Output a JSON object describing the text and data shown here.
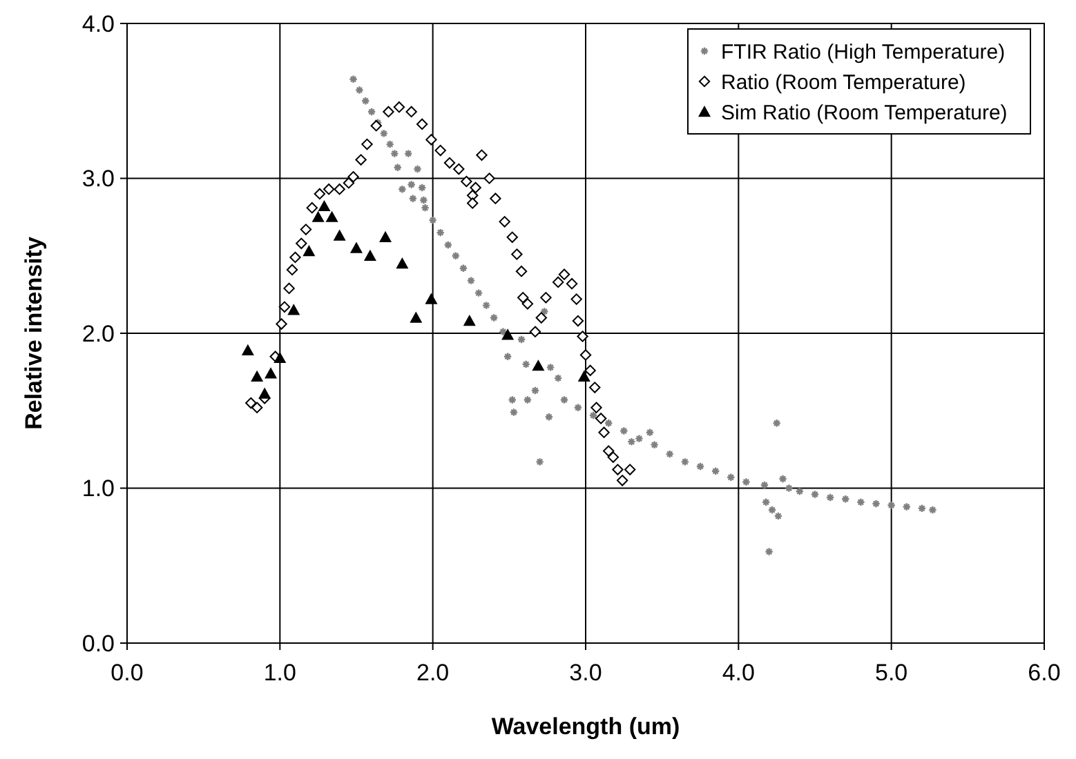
{
  "chart_data": {
    "type": "scatter",
    "xlabel": "Wavelength (um)",
    "ylabel": "Relative intensity",
    "xlim": [
      0,
      6
    ],
    "ylim": [
      0,
      4
    ],
    "xticks": [
      {
        "value": 0,
        "label": "0.0"
      },
      {
        "value": 1,
        "label": "1.0"
      },
      {
        "value": 2,
        "label": "2.0"
      },
      {
        "value": 3,
        "label": "3.0"
      },
      {
        "value": 4,
        "label": "4.0"
      },
      {
        "value": 5,
        "label": "5.0"
      },
      {
        "value": 6,
        "label": "6.0"
      }
    ],
    "yticks": [
      {
        "value": 0,
        "label": "0.0"
      },
      {
        "value": 1,
        "label": "1.0"
      },
      {
        "value": 2,
        "label": "2.0"
      },
      {
        "value": 3,
        "label": "3.0"
      },
      {
        "value": 4,
        "label": "4.0"
      }
    ],
    "grid": true,
    "legend": "top right",
    "series": [
      {
        "name": "FTIR Ratio (High Temperature)",
        "color": "#808080",
        "marker": "cross",
        "x": [
          1.48,
          1.52,
          1.56,
          1.6,
          1.64,
          1.68,
          1.72,
          1.75,
          1.77,
          1.84,
          1.9,
          1.8,
          1.86,
          1.93,
          1.87,
          1.94,
          1.95,
          2.0,
          2.05,
          2.1,
          2.15,
          2.2,
          2.25,
          2.3,
          2.35,
          2.4,
          2.46,
          2.58,
          2.49,
          2.61,
          2.73,
          2.77,
          2.82,
          2.67,
          2.52,
          2.53,
          2.62,
          2.76,
          2.7,
          2.86,
          2.95,
          3.05,
          3.15,
          3.25,
          3.35,
          3.3,
          3.42,
          3.45,
          3.55,
          3.65,
          3.75,
          3.85,
          3.95,
          4.05,
          4.17,
          4.25,
          4.18,
          4.22,
          4.26,
          4.2,
          4.29,
          4.33,
          4.4,
          4.5,
          4.6,
          4.7,
          4.8,
          4.9,
          5.0,
          5.1,
          5.2,
          5.27
        ],
        "values": [
          3.64,
          3.57,
          3.5,
          3.43,
          3.36,
          3.29,
          3.22,
          3.16,
          3.07,
          3.16,
          3.06,
          2.93,
          2.96,
          2.94,
          2.87,
          2.86,
          2.81,
          2.73,
          2.65,
          2.57,
          2.5,
          2.42,
          2.34,
          2.26,
          2.18,
          2.1,
          2.01,
          1.96,
          1.85,
          1.8,
          2.14,
          1.78,
          1.71,
          1.63,
          1.57,
          1.49,
          1.57,
          1.46,
          1.17,
          1.57,
          1.52,
          1.47,
          1.42,
          1.37,
          1.32,
          1.3,
          1.36,
          1.28,
          1.22,
          1.17,
          1.14,
          1.11,
          1.07,
          1.04,
          1.02,
          1.42,
          0.91,
          0.86,
          0.82,
          0.59,
          1.06,
          1.0,
          0.98,
          0.96,
          0.94,
          0.93,
          0.91,
          0.9,
          0.89,
          0.88,
          0.87,
          0.86
        ]
      },
      {
        "name": "Ratio (Room Temperature)",
        "color": "#000000",
        "marker": "diamond",
        "x": [
          0.81,
          0.85,
          0.9,
          0.97,
          1.01,
          1.03,
          1.06,
          1.08,
          1.1,
          1.14,
          1.17,
          1.21,
          1.26,
          1.32,
          1.39,
          1.45,
          1.48,
          1.53,
          1.57,
          1.63,
          1.71,
          1.78,
          1.86,
          1.93,
          1.99,
          2.05,
          2.11,
          2.17,
          2.22,
          2.26,
          2.26,
          2.28,
          2.32,
          2.37,
          2.41,
          2.47,
          2.52,
          2.55,
          2.58,
          2.59,
          2.62,
          2.67,
          2.71,
          2.74,
          2.82,
          2.86,
          2.91,
          2.94,
          2.95,
          2.98,
          3.0,
          3.03,
          3.06,
          3.07,
          3.1,
          3.12,
          3.15,
          3.18,
          3.21,
          3.24,
          3.29
        ],
        "values": [
          1.55,
          1.52,
          1.58,
          1.85,
          2.06,
          2.17,
          2.29,
          2.41,
          2.49,
          2.58,
          2.67,
          2.81,
          2.9,
          2.93,
          2.93,
          2.97,
          3.01,
          3.12,
          3.22,
          3.34,
          3.43,
          3.46,
          3.43,
          3.35,
          3.25,
          3.18,
          3.1,
          3.06,
          2.98,
          2.89,
          2.84,
          2.94,
          3.15,
          3.0,
          2.87,
          2.72,
          2.62,
          2.51,
          2.4,
          2.23,
          2.19,
          2.01,
          2.1,
          2.23,
          2.33,
          2.38,
          2.32,
          2.22,
          2.08,
          1.98,
          1.86,
          1.76,
          1.65,
          1.52,
          1.45,
          1.36,
          1.24,
          1.2,
          1.12,
          1.05,
          1.12
        ]
      },
      {
        "name": "Sim Ratio (Room Temperature)",
        "color": "#000000",
        "marker": "triangle",
        "x": [
          0.79,
          0.85,
          0.94,
          0.9,
          1.0,
          1.09,
          1.19,
          1.25,
          1.29,
          1.34,
          1.39,
          1.5,
          1.59,
          1.69,
          1.8,
          1.89,
          1.99,
          2.24,
          2.49,
          2.69,
          2.99
        ],
        "values": [
          1.89,
          1.72,
          1.74,
          1.61,
          1.84,
          2.15,
          2.53,
          2.75,
          2.82,
          2.75,
          2.63,
          2.55,
          2.5,
          2.62,
          2.45,
          2.1,
          2.22,
          2.08,
          1.99,
          1.79,
          1.72
        ]
      }
    ]
  }
}
